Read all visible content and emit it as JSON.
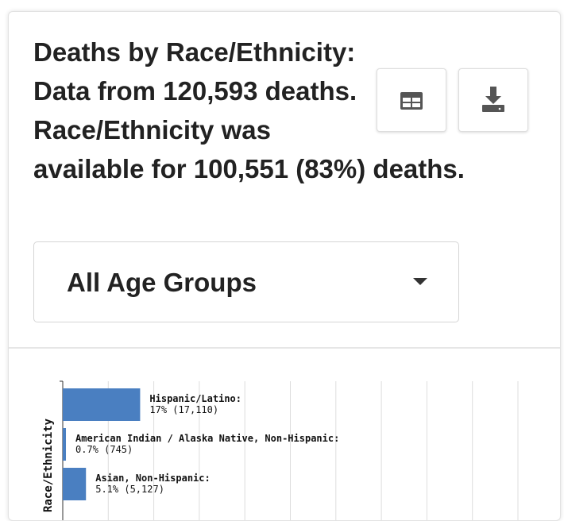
{
  "header": {
    "title": "Deaths by Race/Ethnicity: Data from 120,593 deaths. Race/Ethnicity was available for 100,551 (83%) deaths."
  },
  "dropdown": {
    "label": "All Age Groups"
  },
  "chart_data": {
    "type": "bar",
    "orientation": "horizontal",
    "y_label": "Race/Ethnicity",
    "categories": [
      "Hispanic/Latino:",
      "American Indian / Alaska Native, Non-Hispanic:",
      "Asian, Non-Hispanic:"
    ],
    "values": [
      17,
      0.7,
      5.1
    ],
    "value_labels": [
      "17% (17,110)",
      "0.7% (745)",
      "5.1% (5,127)"
    ],
    "color": "#4a7fc1",
    "xlim": [
      0,
      100
    ],
    "xticks": [
      0,
      10,
      20,
      30,
      40,
      50,
      60,
      70,
      80,
      90,
      100
    ],
    "grid": true
  }
}
